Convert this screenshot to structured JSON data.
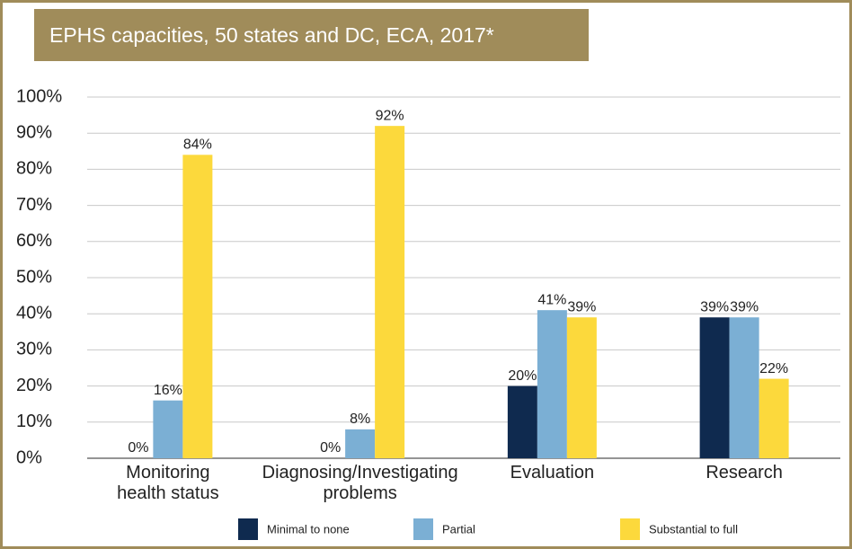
{
  "chart_data": {
    "type": "bar",
    "title": "EPHS capacities, 50 states and DC, ECA, 2017*",
    "categories": [
      "Monitoring\nhealth status",
      "Diagnosing/Investigating\nproblems",
      "Evaluation",
      "Research"
    ],
    "series": [
      {
        "name": "Minimal to none",
        "color": "#0f2a4f",
        "values": [
          0,
          0,
          20,
          39
        ],
        "value_labels": [
          "0%",
          "0%",
          "20%",
          "39%"
        ]
      },
      {
        "name": "Partial",
        "color": "#7bafd4",
        "values": [
          16,
          8,
          41,
          39
        ],
        "value_labels": [
          "16%",
          "8%",
          "41%",
          "39%"
        ]
      },
      {
        "name": "Substantial to full",
        "color": "#fcd93c",
        "values": [
          84,
          92,
          39,
          22
        ],
        "value_labels": [
          "84%",
          "92%",
          "39%",
          "22%"
        ]
      }
    ],
    "ylim": [
      0,
      100
    ],
    "yticks": [
      {
        "value": 0,
        "label": "0%"
      },
      {
        "value": 10,
        "label": "10%"
      },
      {
        "value": 20,
        "label": "20%"
      },
      {
        "value": 30,
        "label": "30%"
      },
      {
        "value": 40,
        "label": "40%"
      },
      {
        "value": 50,
        "label": "50%"
      },
      {
        "value": 60,
        "label": "60%"
      },
      {
        "value": 70,
        "label": "70%"
      },
      {
        "value": 80,
        "label": "80%"
      },
      {
        "value": 90,
        "label": "90%"
      },
      {
        "value": 100,
        "label": "100%"
      }
    ],
    "grid": true,
    "legend": "bottom"
  }
}
